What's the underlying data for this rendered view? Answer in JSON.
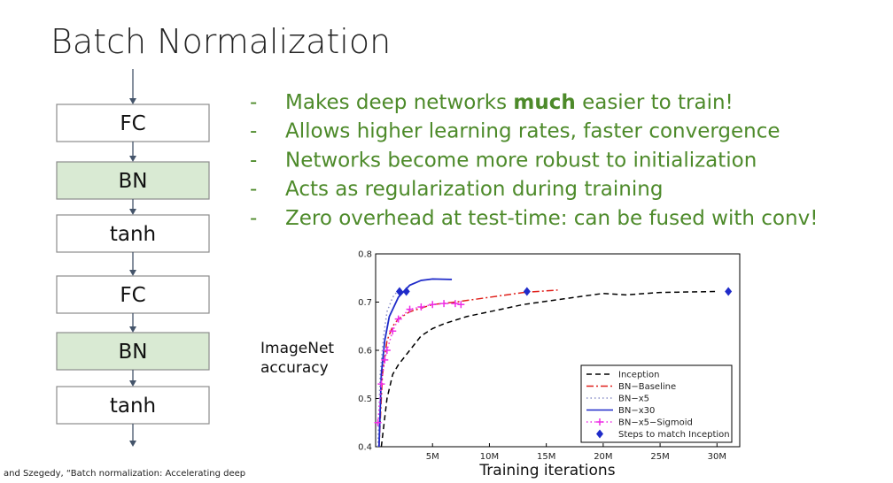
{
  "title": "Batch Normalization",
  "bullets": [
    [
      "Makes deep networks ",
      "much",
      " easier to train!"
    ],
    [
      "Allows higher learning rates, faster convergence"
    ],
    [
      "Networks become more robust to initialization"
    ],
    [
      "Acts as regularization during training"
    ],
    [
      "Zero overhead at test-time: can be fused with conv!"
    ]
  ],
  "bullet_marker": "-",
  "nodes": [
    {
      "label": "FC"
    },
    {
      "label": "BN"
    },
    {
      "label": "tanh"
    },
    {
      "label": "FC"
    },
    {
      "label": "BN"
    },
    {
      "label": "tanh"
    }
  ],
  "citation": "and Szegedy, “Batch normalization: Accelerating deep",
  "chart_data": {
    "type": "line",
    "xlabel": "Training iterations",
    "ylabel": "ImageNet accuracy",
    "xlim": [
      0,
      32
    ],
    "ylim": [
      0.4,
      0.8
    ],
    "xticks": [
      {
        "value": 5,
        "label": "5M"
      },
      {
        "value": 10,
        "label": "10M"
      },
      {
        "value": 15,
        "label": "15M"
      },
      {
        "value": 20,
        "label": "20M"
      },
      {
        "value": 25,
        "label": "25M"
      },
      {
        "value": 30,
        "label": "30M"
      }
    ],
    "yticks": [
      0.4,
      0.5,
      0.6,
      0.7,
      0.8
    ],
    "legend": "lower right",
    "series": [
      {
        "name": "Inception",
        "color": "#000000",
        "style": "dashed",
        "x": [
          0.5,
          1,
          1.5,
          2,
          3,
          4,
          5,
          6,
          8,
          10,
          13,
          16,
          20,
          22,
          25,
          30
        ],
        "values": [
          0.4,
          0.5,
          0.55,
          0.57,
          0.6,
          0.63,
          0.645,
          0.655,
          0.67,
          0.68,
          0.695,
          0.705,
          0.718,
          0.715,
          0.72,
          0.722
        ]
      },
      {
        "name": "BN−Baseline",
        "color": "#e0201b",
        "style": "dashdot",
        "x": [
          0.3,
          0.6,
          1,
          1.5,
          2,
          3,
          5,
          7,
          10,
          13,
          16
        ],
        "values": [
          0.4,
          0.55,
          0.62,
          0.65,
          0.665,
          0.68,
          0.695,
          0.7,
          0.71,
          0.72,
          0.725
        ]
      },
      {
        "name": "BN−x5",
        "color": "#8a8fc8",
        "style": "dotted",
        "x": [
          0.2,
          0.4,
          0.7,
          1,
          1.5,
          2
        ],
        "values": [
          0.4,
          0.55,
          0.63,
          0.68,
          0.71,
          0.725
        ]
      },
      {
        "name": "BN−x30",
        "color": "#1f2bc9",
        "style": "solid",
        "x": [
          0.3,
          0.5,
          0.8,
          1.2,
          2,
          3,
          4,
          5,
          6.7
        ],
        "values": [
          0.4,
          0.55,
          0.62,
          0.67,
          0.71,
          0.735,
          0.745,
          0.748,
          0.747
        ]
      },
      {
        "name": "BN−x5−Sigmoid",
        "color": "#ee2ee6",
        "style": "dotted-plus",
        "x": [
          0.2,
          0.5,
          0.8,
          1,
          1.5,
          2,
          3,
          4,
          5,
          6,
          7,
          7.5
        ],
        "values": [
          0.45,
          0.53,
          0.58,
          0.6,
          0.64,
          0.665,
          0.685,
          0.69,
          0.695,
          0.697,
          0.697,
          0.695
        ]
      },
      {
        "name": "Steps to match Inception",
        "color": "#1f2bc9",
        "style": "diamonds",
        "x": [
          2.1,
          2.7,
          13.3,
          31
        ],
        "values": [
          0.722,
          0.722,
          0.722,
          0.722
        ]
      }
    ]
  }
}
